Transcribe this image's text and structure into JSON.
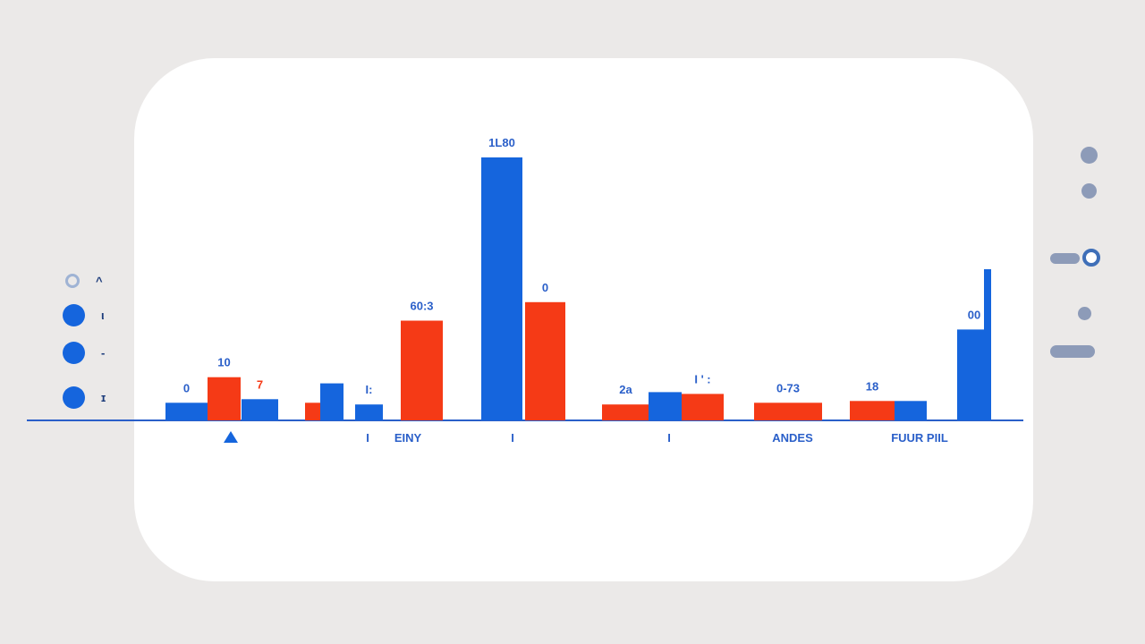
{
  "colors": {
    "blue": "#1565dd",
    "red": "#f53a16",
    "axis": "#2a5fc9",
    "label": "#2a5fc9",
    "control": "#8d9bb8"
  },
  "chart_data": {
    "type": "bar",
    "ylim": [
      0,
      300
    ],
    "categories": [
      "▲",
      "I",
      "EINY",
      "I",
      "I",
      "ANDES",
      "FUUR PIIL"
    ],
    "bars": [
      {
        "cat": 0,
        "series": "blue",
        "value": 20,
        "label": "0"
      },
      {
        "cat": 0,
        "series": "red",
        "value": 49,
        "label": "10"
      },
      {
        "cat": 0,
        "series": "blue",
        "value": 24,
        "label": "7"
      },
      {
        "cat": 1,
        "series": "red",
        "value": 20,
        "label": ""
      },
      {
        "cat": 1,
        "series": "blue",
        "value": 42,
        "label": ""
      },
      {
        "cat": 1,
        "series": "blue",
        "value": 18,
        "label": "I:"
      },
      {
        "cat": 2,
        "series": "red",
        "value": 113,
        "label": "60:3"
      },
      {
        "cat": 3,
        "series": "blue",
        "value": 298,
        "label": "1L80"
      },
      {
        "cat": 3,
        "series": "red",
        "value": 134,
        "label": "0"
      },
      {
        "cat": 4,
        "series": "red",
        "value": 18,
        "label": "2a"
      },
      {
        "cat": 4,
        "series": "blue",
        "value": 32,
        "label": ""
      },
      {
        "cat": 4,
        "series": "red",
        "value": 30,
        "label": "I ' :"
      },
      {
        "cat": 5,
        "series": "red",
        "value": 20,
        "label": "0-73"
      },
      {
        "cat": 6,
        "series": "red",
        "value": 22,
        "label": "18"
      },
      {
        "cat": 6,
        "series": "blue",
        "value": 22,
        "label": ""
      },
      {
        "cat": 6,
        "series": "blue",
        "value": 103,
        "label": "00"
      }
    ]
  },
  "left_legend": [
    {
      "marker": "ring",
      "text": "^"
    },
    {
      "marker": "dot",
      "text": "ι"
    },
    {
      "marker": "dot",
      "text": "-"
    },
    {
      "marker": "dot",
      "text": "ɪ"
    }
  ]
}
